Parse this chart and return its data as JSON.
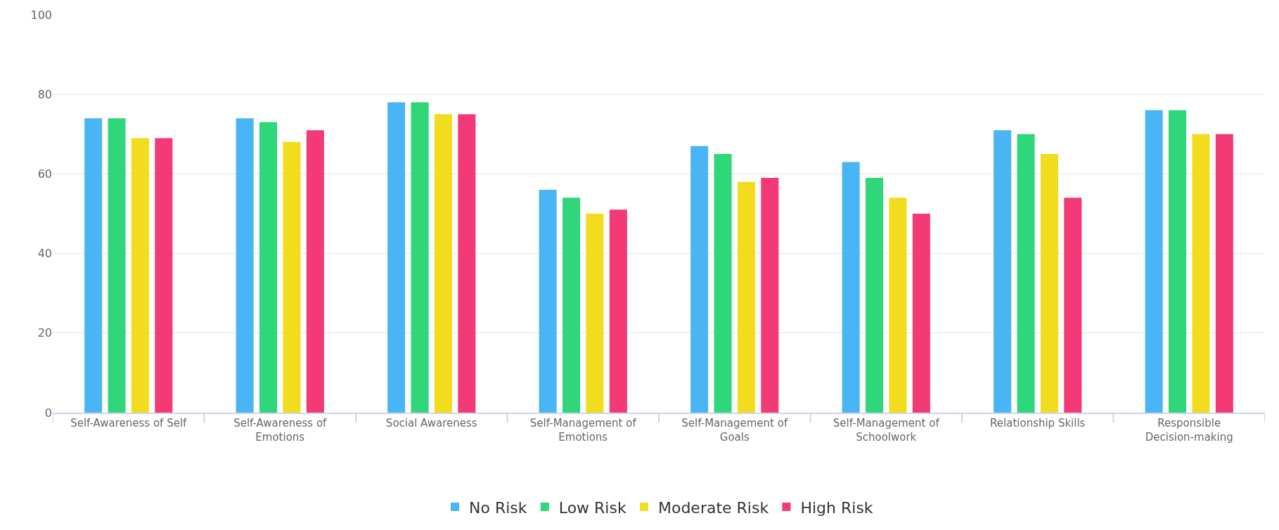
{
  "chart_data": {
    "type": "bar",
    "categories": [
      "Self-Awareness of Self",
      "Self-Awareness of Emotions",
      "Social Awareness",
      "Self-Management of Emotions",
      "Self-Management of Goals",
      "Self-Management of Schoolwork",
      "Relationship Skills",
      "Responsible Decision-making"
    ],
    "series": [
      {
        "name": "No Risk",
        "color": "#4ab5f5",
        "values": [
          74,
          74,
          78,
          56,
          67,
          63,
          71,
          76
        ]
      },
      {
        "name": "Low Risk",
        "color": "#2fd67a",
        "values": [
          74,
          73,
          78,
          54,
          65,
          59,
          70,
          76
        ]
      },
      {
        "name": "Moderate Risk",
        "color": "#f2dc1e",
        "values": [
          69,
          68,
          75,
          50,
          58,
          54,
          65,
          70
        ]
      },
      {
        "name": "High Risk",
        "color": "#f33a77",
        "values": [
          69,
          71,
          75,
          51,
          59,
          50,
          54,
          70
        ]
      }
    ],
    "ylim": [
      0,
      100
    ],
    "yticks": [
      0,
      20,
      40,
      60,
      80,
      100
    ],
    "grid": "y",
    "legend": "bottom"
  }
}
